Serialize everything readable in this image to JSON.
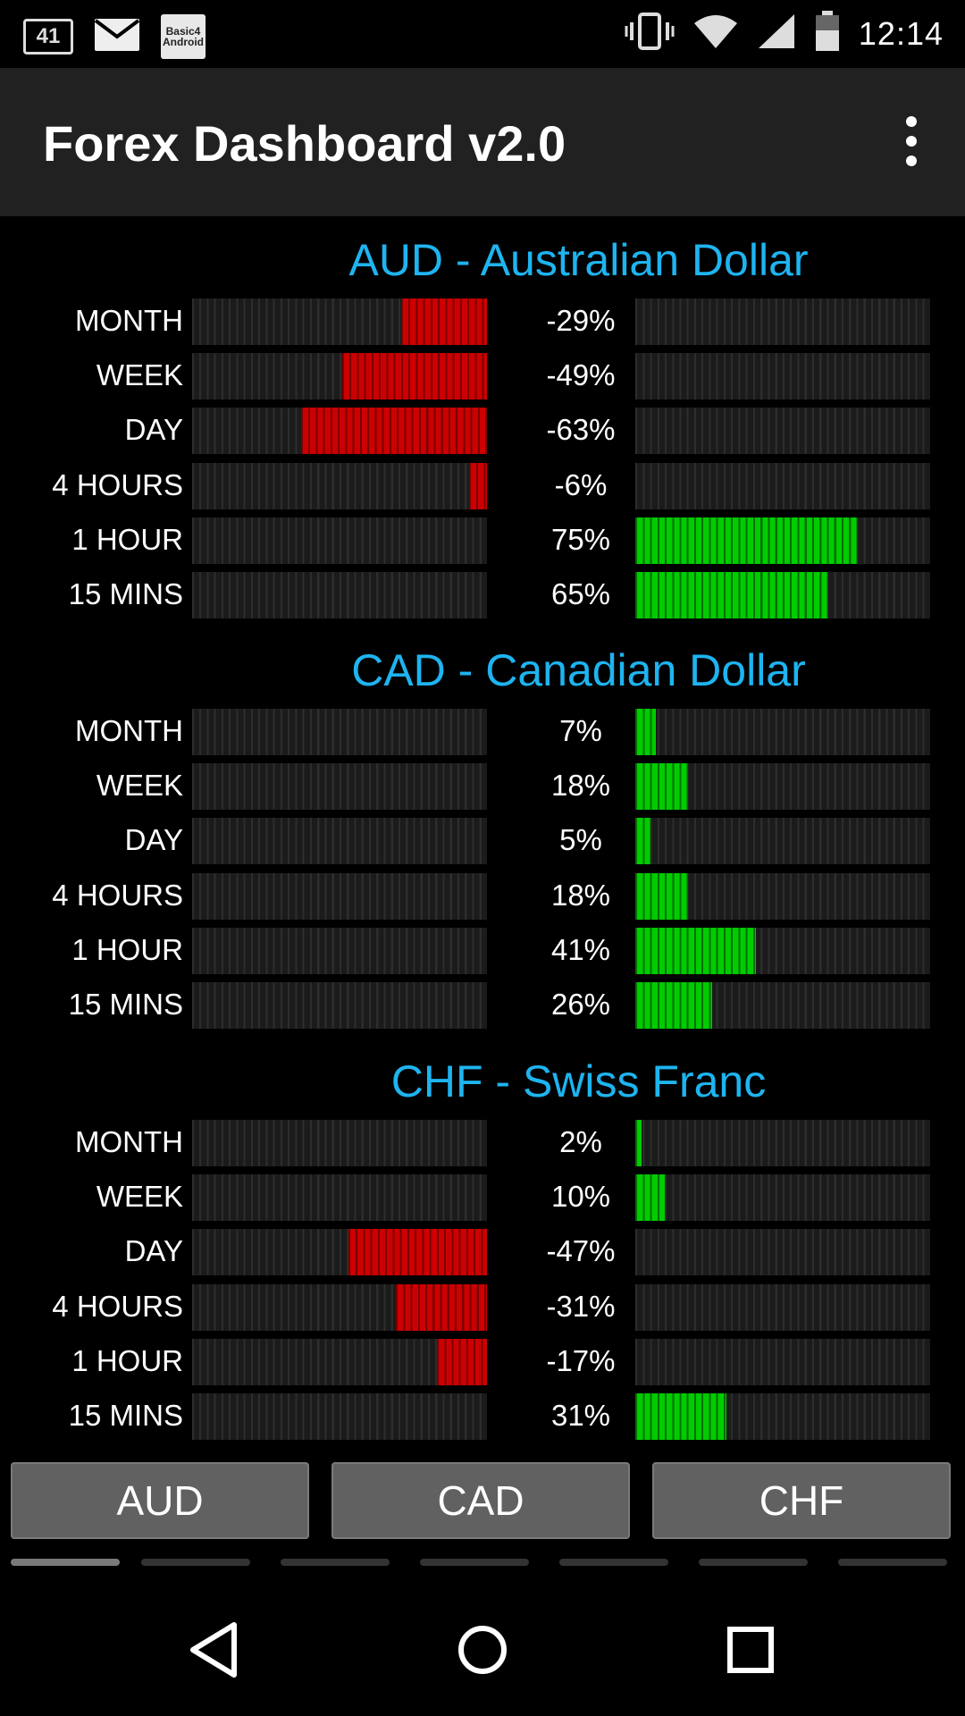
{
  "status_bar": {
    "notification_number": "41",
    "b4a_label_1": "Basic4",
    "b4a_label_2": "Android",
    "time": "12:14",
    "icons": [
      "notification-count-icon",
      "mail-icon",
      "basic4android-icon",
      "vibrate-icon",
      "wifi-icon",
      "signal-icon",
      "battery-icon"
    ]
  },
  "app_bar": {
    "title": "Forex Dashboard v2.0",
    "menu_icon": "overflow-menu-icon"
  },
  "colors": {
    "title_blue": "#1eb4f0",
    "negative_red": "#cc0000",
    "positive_green": "#00cc00",
    "app_bar": "#212121",
    "button_gray": "#616161"
  },
  "sections": [
    {
      "title": "AUD - Australian Dollar",
      "rows": [
        {
          "label": "MONTH",
          "value": -29,
          "display": "-29%"
        },
        {
          "label": "WEEK",
          "value": -49,
          "display": "-49%"
        },
        {
          "label": "DAY",
          "value": -63,
          "display": "-63%"
        },
        {
          "label": "4 HOURS",
          "value": -6,
          "display": "-6%"
        },
        {
          "label": "1 HOUR",
          "value": 75,
          "display": "75%"
        },
        {
          "label": "15 MINS",
          "value": 65,
          "display": "65%"
        }
      ]
    },
    {
      "title": "CAD - Canadian Dollar",
      "rows": [
        {
          "label": "MONTH",
          "value": 7,
          "display": "7%"
        },
        {
          "label": "WEEK",
          "value": 18,
          "display": "18%"
        },
        {
          "label": "DAY",
          "value": 5,
          "display": "5%"
        },
        {
          "label": "4 HOURS",
          "value": 18,
          "display": "18%"
        },
        {
          "label": "1 HOUR",
          "value": 41,
          "display": "41%"
        },
        {
          "label": "15 MINS",
          "value": 26,
          "display": "26%"
        }
      ]
    },
    {
      "title": "CHF - Swiss Franc",
      "rows": [
        {
          "label": "MONTH",
          "value": 2,
          "display": "2%"
        },
        {
          "label": "WEEK",
          "value": 10,
          "display": "10%"
        },
        {
          "label": "DAY",
          "value": -47,
          "display": "-47%"
        },
        {
          "label": "4 HOURS",
          "value": -31,
          "display": "-31%"
        },
        {
          "label": "1 HOUR",
          "value": -17,
          "display": "-17%"
        },
        {
          "label": "15 MINS",
          "value": 31,
          "display": "31%"
        }
      ]
    }
  ],
  "buttons": [
    {
      "label": "AUD"
    },
    {
      "label": "CAD"
    },
    {
      "label": "CHF"
    }
  ],
  "page_indicator": {
    "pages": 7,
    "active": 0
  },
  "nav_bar": {
    "icons": [
      "back-icon",
      "home-icon",
      "recents-icon"
    ]
  }
}
